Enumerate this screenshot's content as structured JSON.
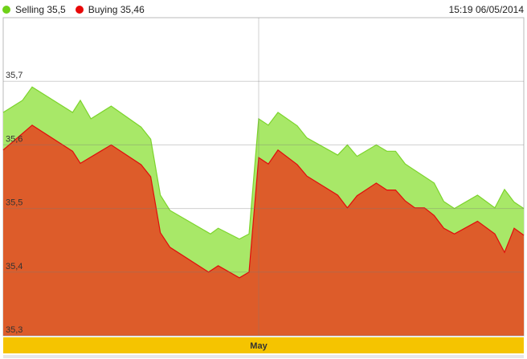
{
  "header": {
    "timestamp": "15:19 06/05/2014"
  },
  "chart_data": {
    "type": "area",
    "title": "",
    "xlabel": "",
    "ylabel": "",
    "xlim": [
      0,
      54
    ],
    "ylim": [
      35.3,
      35.8
    ],
    "grid": true,
    "legend_placement": "top-left",
    "yticks": [
      {
        "v": 35.3,
        "label": "35,3"
      },
      {
        "v": 35.4,
        "label": "35,4"
      },
      {
        "v": 35.5,
        "label": "35,5"
      },
      {
        "v": 35.6,
        "label": "35,6"
      },
      {
        "v": 35.7,
        "label": "35,7"
      }
    ],
    "month_label": {
      "x": 26.5,
      "label": "May"
    },
    "series": [
      {
        "name": "Selling",
        "legend_label": "Selling 35,5",
        "color": "#7cd42c",
        "fill": "#a8e868",
        "x": [
          0,
          2,
          3,
          7.2,
          8,
          9.1,
          11.2,
          14.3,
          15.3,
          16.3,
          17.3,
          21.5,
          22.3,
          24.5,
          25.5,
          26.5,
          27.5,
          28.5,
          30.5,
          31.5,
          34.7,
          35.7,
          36.7,
          38.7,
          39.8,
          40.7,
          41.7,
          44.7,
          45.7,
          46.8,
          49.2,
          51,
          52,
          53,
          54
        ],
        "y": [
          35.651,
          35.67,
          35.691,
          35.651,
          35.67,
          35.641,
          35.661,
          35.628,
          35.609,
          35.521,
          35.497,
          35.46,
          35.469,
          35.452,
          35.46,
          35.641,
          35.631,
          35.651,
          35.63,
          35.611,
          35.584,
          35.6,
          35.582,
          35.6,
          35.59,
          35.59,
          35.57,
          35.54,
          35.511,
          35.5,
          35.521,
          35.501,
          35.53,
          35.51,
          35.5
        ]
      },
      {
        "name": "Buying",
        "legend_label": "Buying 35,46",
        "color": "#e00c0c",
        "fill": "#dd5c2a",
        "x": [
          0,
          3,
          7.2,
          8,
          11.2,
          14.3,
          15.3,
          16.3,
          17.3,
          21.3,
          22.3,
          24.5,
          25.5,
          26.5,
          27.5,
          28.5,
          30.5,
          31.5,
          34.7,
          35.7,
          36.7,
          38.7,
          39.8,
          40.7,
          41.7,
          42.7,
          43.7,
          44.7,
          45.7,
          46.8,
          49.2,
          51,
          52,
          53,
          54
        ],
        "y": [
          35.592,
          35.631,
          35.59,
          35.571,
          35.6,
          35.569,
          35.55,
          35.462,
          35.439,
          35.4,
          35.41,
          35.391,
          35.4,
          35.58,
          35.57,
          35.592,
          35.569,
          35.551,
          35.521,
          35.501,
          35.52,
          35.54,
          35.529,
          35.529,
          35.512,
          35.501,
          35.501,
          35.489,
          35.469,
          35.46,
          35.48,
          35.46,
          35.431,
          35.469,
          35.458
        ]
      }
    ]
  }
}
